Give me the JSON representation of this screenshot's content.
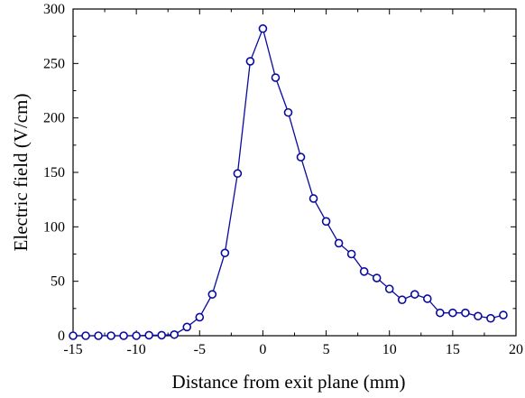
{
  "chart_data": {
    "type": "line",
    "title": "",
    "xlabel": "Distance from exit plane (mm)",
    "ylabel": "Electric field (V/cm)",
    "xlim": [
      -15,
      20
    ],
    "ylim": [
      0,
      300
    ],
    "x_ticks": [
      -15,
      -10,
      -5,
      0,
      5,
      10,
      15,
      20
    ],
    "y_ticks": [
      0,
      50,
      100,
      150,
      200,
      250,
      300
    ],
    "x_tick_labels": [
      "-15",
      "-10",
      "-5",
      "0",
      "5",
      "10",
      "15",
      "20"
    ],
    "y_tick_labels": [
      "0",
      "50",
      "100",
      "150",
      "200",
      "250",
      "300"
    ],
    "grid": false,
    "legend": "none",
    "series": [
      {
        "color": "#0a0aa0",
        "marker": "open-circle",
        "x": [
          -15,
          -14,
          -13,
          -12,
          -11,
          -10,
          -9,
          -8,
          -7,
          -6,
          -5,
          -4,
          -3,
          -2,
          -1,
          0,
          1,
          2,
          3,
          4,
          5,
          6,
          7,
          8,
          9,
          10,
          11,
          12,
          13,
          14,
          15,
          16,
          17,
          18,
          19
        ],
        "y": [
          0,
          0,
          0,
          0,
          0,
          0,
          0.5,
          0.5,
          1,
          8,
          17,
          38,
          76,
          149,
          252,
          282,
          237,
          205,
          164,
          126,
          105,
          85,
          75,
          59,
          53,
          43,
          33,
          38,
          34,
          21,
          21,
          21,
          18,
          16,
          19
        ]
      }
    ]
  }
}
